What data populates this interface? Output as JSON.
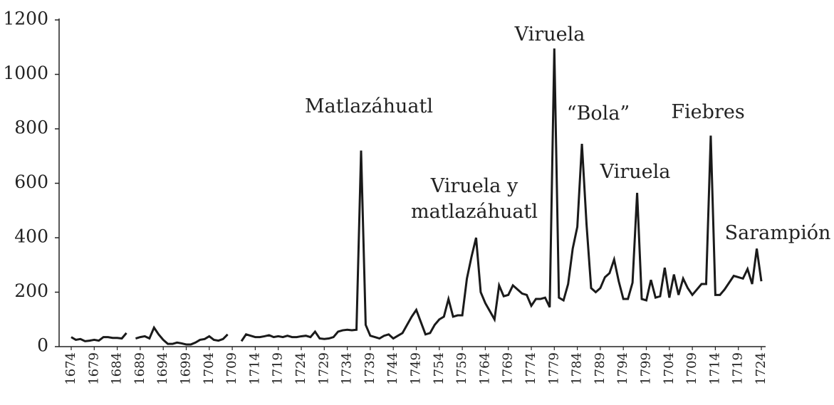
{
  "chart_data": {
    "type": "line",
    "categories": [
      "1674",
      null,
      null,
      null,
      null,
      "1679",
      null,
      null,
      null,
      null,
      "1684",
      null,
      null,
      null,
      null,
      "1689",
      null,
      null,
      null,
      null,
      "1694",
      null,
      null,
      null,
      null,
      "1699",
      null,
      null,
      null,
      null,
      "1704",
      null,
      null,
      null,
      null,
      "1709",
      null,
      null,
      null,
      null,
      "1714",
      null,
      null,
      null,
      null,
      "1719",
      null,
      null,
      null,
      null,
      "1724",
      null,
      null,
      null,
      null,
      "1729",
      null,
      null,
      null,
      null,
      "1734",
      null,
      null,
      null,
      null,
      "1739",
      null,
      null,
      null,
      null,
      "1744",
      null,
      null,
      null,
      null,
      "1749",
      null,
      null,
      null,
      null,
      "1754",
      null,
      null,
      null,
      null,
      "1759",
      null,
      null,
      null,
      null,
      "1764",
      null,
      null,
      null,
      null,
      "1769",
      null,
      null,
      null,
      null,
      "1774",
      null,
      null,
      null,
      null,
      "1779",
      null,
      null,
      null,
      null,
      "1784",
      null,
      null,
      null,
      null,
      "1789",
      null,
      null,
      null,
      null,
      "1794",
      null,
      null,
      null,
      null,
      "1799",
      null,
      null,
      null,
      null,
      "1704",
      null,
      null,
      null,
      null,
      "1709",
      null,
      null,
      null,
      null,
      "1714",
      null,
      null,
      null,
      null,
      "1719",
      null,
      null,
      null,
      null,
      "1724"
    ],
    "series": [
      {
        "color": "#1a1a1a",
        "values": [
          35,
          25,
          28,
          20,
          22,
          25,
          22,
          35,
          35,
          32,
          32,
          30,
          50,
          null,
          30,
          35,
          38,
          30,
          70,
          45,
          25,
          10,
          10,
          15,
          12,
          8,
          8,
          15,
          25,
          28,
          38,
          25,
          22,
          28,
          45,
          null,
          null,
          20,
          45,
          40,
          35,
          35,
          38,
          42,
          35,
          38,
          35,
          40,
          35,
          35,
          38,
          40,
          35,
          55,
          30,
          28,
          30,
          35,
          55,
          60,
          62,
          60,
          62,
          720,
          80,
          40,
          35,
          30,
          40,
          45,
          30,
          40,
          50,
          80,
          110,
          135,
          90,
          45,
          50,
          80,
          100,
          110,
          175,
          110,
          115,
          115,
          250,
          330,
          400,
          200,
          160,
          130,
          100,
          225,
          185,
          190,
          225,
          210,
          195,
          190,
          150,
          175,
          175,
          180,
          145,
          1095,
          180,
          170,
          230,
          360,
          440,
          745,
          450,
          215,
          200,
          215,
          255,
          270,
          320,
          240,
          175,
          175,
          235,
          565,
          175,
          170,
          245,
          180,
          185,
          290,
          180,
          265,
          190,
          250,
          215,
          190,
          210,
          230,
          230,
          775,
          190,
          190,
          210,
          235,
          260,
          255,
          250,
          285,
          230,
          360,
          240
        ]
      }
    ],
    "ylim": [
      0,
      1200
    ],
    "yticks": [
      0,
      200,
      400,
      600,
      800,
      1000,
      1200
    ],
    "annotations": [
      "Matlazáhuatl",
      "Viruela y\nmatlazáhuatl",
      "Viruela",
      "“Bola”",
      "Viruela",
      "Fiebres",
      "Sarampión"
    ]
  }
}
